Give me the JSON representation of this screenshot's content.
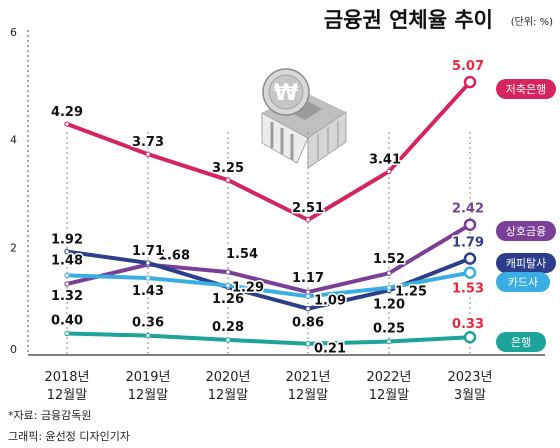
{
  "chart_data": {
    "type": "line",
    "title": "금융권 연체율 추이",
    "unit": "(단위: %)",
    "x": [
      {
        "line1": "2018년",
        "line2": "12월말"
      },
      {
        "line1": "2019년",
        "line2": "12월말"
      },
      {
        "line1": "2020년",
        "line2": "12월말"
      },
      {
        "line1": "2021년",
        "line2": "12월말"
      },
      {
        "line1": "2022년",
        "line2": "12월말"
      },
      {
        "line1": "2023년",
        "line2": "3월말"
      }
    ],
    "y_ticks": [
      "0",
      "2",
      "4",
      "6"
    ],
    "ylim": [
      0,
      6
    ],
    "series": [
      {
        "name": "저축은행",
        "color": "#d6245e",
        "values": [
          4.29,
          3.73,
          3.25,
          2.51,
          3.41,
          5.07
        ],
        "labels": [
          "4.29",
          "3.73",
          "3.25",
          "2.51",
          "3.41",
          "5.07"
        ]
      },
      {
        "name": "상호금융",
        "color": "#7b3f98",
        "values": [
          1.32,
          1.68,
          1.54,
          1.17,
          1.52,
          2.42
        ],
        "labels": [
          "1.32",
          "1.68",
          "1.54",
          "1.17",
          "1.52",
          "2.42"
        ]
      },
      {
        "name": "캐피탈사",
        "color": "#2c3e8c",
        "values": [
          1.92,
          1.71,
          1.26,
          0.86,
          1.2,
          1.79
        ],
        "labels": [
          "1.92",
          "1.71",
          "1.26",
          "0.86",
          "1.20",
          "1.79"
        ]
      },
      {
        "name": "카드사",
        "color": "#3aaee3",
        "values": [
          1.48,
          1.43,
          1.29,
          1.09,
          1.25,
          1.53
        ],
        "labels": [
          "1.48",
          "1.43",
          "1.29",
          "1.09",
          "1.25",
          "1.53"
        ]
      },
      {
        "name": "은행",
        "color": "#1ea39a",
        "values": [
          0.4,
          0.36,
          0.28,
          0.21,
          0.25,
          0.33
        ],
        "labels": [
          "0.40",
          "0.36",
          "0.28",
          "0.21",
          "0.25",
          "0.33"
        ]
      }
    ],
    "grid": false,
    "legend": "right, next to last points"
  },
  "footer": {
    "source": "*자료: 금융감독원",
    "credit": "그래픽: 윤선정 디자인기자"
  },
  "icon": "bank-building-won-coin-icon"
}
